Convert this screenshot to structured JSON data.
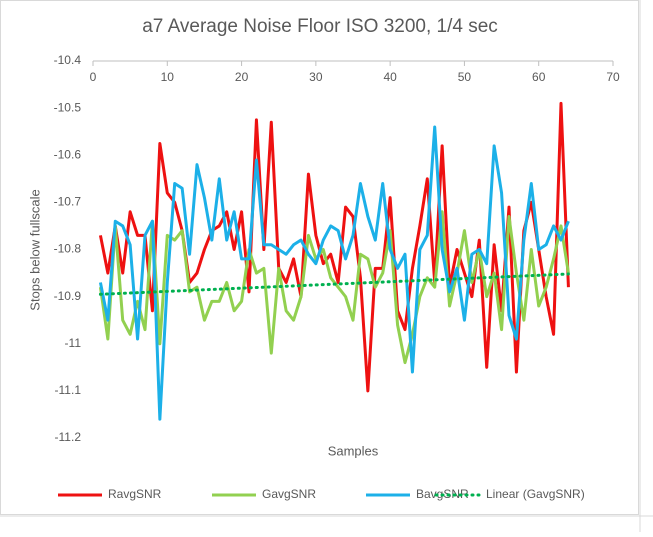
{
  "chart_data": {
    "type": "line",
    "title": "a7 Average Noise Floor ISO 3200, 1/4 sec",
    "xlabel": "Samples",
    "ylabel": "Stops below fullscale",
    "x": [
      1,
      2,
      3,
      4,
      5,
      6,
      7,
      8,
      9,
      10,
      11,
      12,
      13,
      14,
      15,
      16,
      17,
      18,
      19,
      20,
      21,
      22,
      23,
      24,
      25,
      26,
      27,
      28,
      29,
      30,
      31,
      32,
      33,
      34,
      35,
      36,
      37,
      38,
      39,
      40,
      41,
      42,
      43,
      44,
      45,
      46,
      47,
      48,
      49,
      50,
      51,
      52,
      53,
      54,
      55,
      56,
      57,
      58,
      59,
      60,
      61,
      62,
      63,
      64
    ],
    "xlim": [
      0,
      70
    ],
    "xticks": [
      0,
      10,
      20,
      30,
      40,
      50,
      60,
      70
    ],
    "ylim": [
      -11.2,
      -10.4
    ],
    "yticks": [
      -10.4,
      -10.5,
      -10.6,
      -10.7,
      -10.8,
      -10.9,
      -11,
      -11.1,
      -11.2
    ],
    "grid": false,
    "legend": "bottom",
    "series": [
      {
        "name": "RavgSNR",
        "color": "#ee1111",
        "values": [
          -10.77,
          -10.85,
          -10.75,
          -10.85,
          -10.72,
          -10.77,
          -10.77,
          -10.93,
          -10.575,
          -10.68,
          -10.7,
          -10.76,
          -10.87,
          -10.85,
          -10.8,
          -10.76,
          -10.75,
          -10.72,
          -10.8,
          -10.72,
          -10.89,
          -10.525,
          -10.8,
          -10.53,
          -10.84,
          -10.87,
          -10.82,
          -10.9,
          -10.64,
          -10.77,
          -10.83,
          -10.81,
          -10.87,
          -10.71,
          -10.73,
          -10.86,
          -11.1,
          -10.84,
          -10.84,
          -10.69,
          -10.93,
          -10.97,
          -10.84,
          -10.75,
          -10.65,
          -10.87,
          -10.58,
          -10.88,
          -10.8,
          -10.85,
          -10.9,
          -10.78,
          -11.05,
          -10.79,
          -10.93,
          -10.71,
          -11.06,
          -10.76,
          -10.7,
          -10.8,
          -10.9,
          -10.98,
          -10.49,
          -10.88
        ]
      },
      {
        "name": "GavgSNR",
        "color": "#92d050",
        "values": [
          -10.88,
          -10.99,
          -10.75,
          -10.95,
          -10.98,
          -10.91,
          -10.97,
          -10.74,
          -11.0,
          -10.77,
          -10.78,
          -10.76,
          -10.89,
          -10.88,
          -10.95,
          -10.91,
          -10.91,
          -10.87,
          -10.93,
          -10.91,
          -10.8,
          -10.85,
          -10.84,
          -11.02,
          -10.84,
          -10.93,
          -10.95,
          -10.9,
          -10.77,
          -10.82,
          -10.8,
          -10.86,
          -10.88,
          -10.9,
          -10.95,
          -10.81,
          -10.82,
          -10.88,
          -10.85,
          -10.76,
          -10.96,
          -11.04,
          -10.98,
          -10.9,
          -10.86,
          -10.88,
          -10.72,
          -10.92,
          -10.85,
          -10.76,
          -10.87,
          -10.8,
          -10.9,
          -10.85,
          -10.97,
          -10.73,
          -10.85,
          -10.95,
          -10.8,
          -10.92,
          -10.88,
          -10.82,
          -10.75,
          -10.85
        ]
      },
      {
        "name": "BavgSNR",
        "color": "#1cb0e8",
        "values": [
          -10.87,
          -10.95,
          -10.74,
          -10.75,
          -10.79,
          -10.99,
          -10.77,
          -10.74,
          -11.16,
          -10.87,
          -10.66,
          -10.67,
          -10.81,
          -10.62,
          -10.69,
          -10.78,
          -10.65,
          -10.78,
          -10.72,
          -10.82,
          -10.82,
          -10.61,
          -10.79,
          -10.79,
          -10.8,
          -10.81,
          -10.79,
          -10.78,
          -10.81,
          -10.83,
          -10.78,
          -10.75,
          -10.76,
          -10.82,
          -10.77,
          -10.66,
          -10.73,
          -10.78,
          -10.66,
          -10.8,
          -10.84,
          -10.81,
          -11.06,
          -10.8,
          -10.77,
          -10.54,
          -10.8,
          -10.89,
          -10.84,
          -10.95,
          -10.81,
          -10.8,
          -10.83,
          -10.58,
          -10.68,
          -10.94,
          -10.99,
          -10.78,
          -10.66,
          -10.8,
          -10.79,
          -10.75,
          -10.78,
          -10.74
        ]
      }
    ],
    "trendline": {
      "name": "Linear (GavgSNR)",
      "color": "#00b050",
      "x": [
        1,
        64
      ],
      "values": [
        -10.895,
        -10.852
      ]
    }
  }
}
